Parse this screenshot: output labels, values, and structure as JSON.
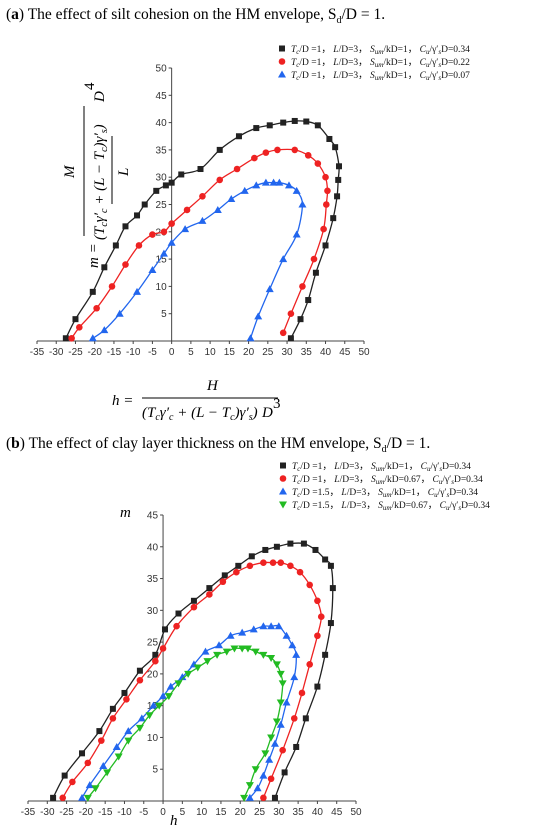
{
  "figure_a": {
    "caption_label": "a",
    "caption_text": " The effect of silt cohesion on the HM envelope, S",
    "caption_sub": "d",
    "caption_tail": "/D = 1.",
    "y_equation": {
      "lhs": "m =",
      "numerator": "M",
      "denominator_line1": "(T",
      "denominator_full": "(T_cγ'_c + (L − T_c)γ'_s) / L",
      "power": "4",
      "variable": "D"
    },
    "x_equation": {
      "lhs": "h =",
      "numerator": "H",
      "denominator_full": "(T_cγ'_c + (L − T_c)γ'_s) / L",
      "power": "3",
      "variable": "D"
    }
  },
  "figure_b": {
    "caption_label": "b",
    "caption_text": " The effect of clay layer thickness on the HM envelope, S",
    "caption_sub": "d",
    "caption_tail": "/D = 1.",
    "xlabel": "h",
    "ylabel": "m"
  },
  "chart_data": [
    {
      "type": "line",
      "id": "a",
      "xlim": [
        -35,
        50
      ],
      "ylim": [
        0,
        50
      ],
      "xticks": [
        -35,
        -30,
        -25,
        -20,
        -15,
        -10,
        -5,
        0,
        5,
        10,
        15,
        20,
        25,
        30,
        35,
        40,
        45,
        50
      ],
      "yticks": [
        5,
        10,
        15,
        20,
        25,
        30,
        35,
        40,
        45,
        50
      ],
      "legend_position": "top-right",
      "series": [
        {
          "name": "T_c/D = 1，L/D=3，S_um/kD=1，C_u/γ'_sD=0.34",
          "legend": [
            "T",
            "c",
            "/D =1， ",
            "L",
            "/D=3， ",
            "S",
            "um",
            "/kD=1， ",
            "C",
            "u",
            "/γ",
            "s",
            "D=0.34"
          ],
          "color": "#222222",
          "marker": "square",
          "x": [
            -27.5,
            -25,
            -20.5,
            -17.5,
            -14.5,
            -12,
            -9,
            -7,
            -4,
            -1.5,
            0,
            2.5,
            7.5,
            12.5,
            17.5,
            22,
            25.5,
            29,
            32,
            35,
            38,
            41,
            42.5,
            43.5,
            43.3,
            43,
            42,
            40,
            37.5,
            35.5,
            33.5,
            31
          ],
          "y": [
            0.5,
            4,
            9,
            13.5,
            17.5,
            21,
            23,
            25,
            27.5,
            28.5,
            29,
            30.5,
            31.5,
            35,
            37.5,
            39,
            39.5,
            40,
            40.3,
            40.2,
            39.5,
            37,
            35.5,
            32,
            29.5,
            26.5,
            22.5,
            17.5,
            12.5,
            7.5,
            4,
            0.5
          ]
        },
        {
          "name": "T_c/D = 1，L/D=3，S_um/kD=1，C_u/γ'_sD=0.22",
          "legend": [
            "T",
            "c",
            "/D =1， ",
            "L",
            "/D=3， ",
            "S",
            "um",
            "/kD=1， ",
            "C",
            "u",
            "/γ",
            "s",
            "D=0.22"
          ],
          "color": "#ee2222",
          "marker": "circle",
          "x": [
            -26,
            -24,
            -19.5,
            -15.5,
            -12,
            -8.5,
            -5,
            -2,
            0,
            4,
            8,
            12.5,
            17,
            21.5,
            24.5,
            27.5,
            32,
            35.5,
            38,
            40,
            40.5,
            40.2,
            39.5,
            37,
            34,
            31,
            29
          ],
          "y": [
            0.5,
            2.5,
            6,
            10,
            14,
            17.5,
            19.5,
            20,
            21.5,
            24,
            26.5,
            29.5,
            31.5,
            33.5,
            34.5,
            35,
            35,
            34,
            32.5,
            30,
            27.5,
            25,
            20.5,
            15,
            10,
            5,
            1.5
          ]
        },
        {
          "name": "T_c/D = 1，L/D=3，S_um/kD=1，C_u/γ'_sD=0.07",
          "legend": [
            "T",
            "c",
            "/D =1， ",
            "L",
            "/D=3， ",
            "S",
            "um",
            "/kD=1， ",
            "C",
            "u",
            "/γ",
            "s",
            "D=0.07"
          ],
          "color": "#2266ee",
          "marker": "triangle",
          "x": [
            -20.5,
            -17.5,
            -13.5,
            -9,
            -5,
            -2,
            0,
            3.5,
            8,
            12,
            15.5,
            19,
            22,
            24.5,
            26.5,
            28,
            30.5,
            32.5,
            34,
            32.5,
            29,
            25.5,
            22.5,
            20.5
          ],
          "y": [
            0.5,
            2,
            5,
            9,
            13,
            16,
            18,
            20.5,
            22,
            24,
            26,
            27.5,
            28.5,
            29,
            29,
            29,
            28.5,
            27.5,
            25,
            19.5,
            15,
            9.5,
            4.5,
            0.5
          ]
        }
      ]
    },
    {
      "type": "line",
      "id": "b",
      "xlabel": "h",
      "ylabel": "m",
      "xlim": [
        -35,
        50
      ],
      "ylim": [
        0,
        45
      ],
      "xticks": [
        -35,
        -30,
        -25,
        -20,
        -15,
        -10,
        -5,
        0,
        5,
        10,
        15,
        20,
        25,
        30,
        35,
        40,
        45,
        50
      ],
      "yticks": [
        5,
        10,
        15,
        20,
        25,
        30,
        35,
        40,
        45
      ],
      "legend_position": "top-right",
      "series": [
        {
          "name": "T_c/D = 1，L/D=3，S_um/kD=1，C_u/γ'_sD=0.34",
          "legend": [
            "T",
            "c",
            "/D =1， ",
            "L",
            "/D=3， ",
            "S",
            "um",
            "/kD=1， ",
            "C",
            "u",
            "/γ",
            "s",
            "D=0.34"
          ],
          "color": "#222222",
          "marker": "square",
          "x": [
            -28.5,
            -25.5,
            -21,
            -16.5,
            -13,
            -10,
            -6,
            -2,
            0.5,
            4,
            8,
            12,
            16,
            19.5,
            23,
            26.5,
            29.5,
            33,
            36.5,
            39.5,
            42,
            43.5,
            44,
            43.5,
            42,
            40,
            37,
            34.5,
            31.5,
            29
          ],
          "y": [
            0.5,
            4,
            7.5,
            11,
            14.5,
            17,
            20.5,
            23,
            27,
            29.5,
            31.5,
            33.5,
            35.5,
            37,
            38.5,
            39.5,
            40,
            40.5,
            40.5,
            39.5,
            38,
            37,
            33.5,
            28,
            23,
            18,
            13,
            8.5,
            4.5,
            0.5
          ]
        },
        {
          "name": "T_c/D = 1，L/D=3，S_um/kD=0.67，C_u/γ'_sD=0.34",
          "legend": [
            "T",
            "c",
            "/D =1， ",
            "L",
            "/D=3， ",
            "S",
            "um",
            "/kD=0.67， ",
            "C",
            "u",
            "/γ",
            "s",
            "D=0.34"
          ],
          "color": "#ee2222",
          "marker": "circle",
          "x": [
            -26,
            -23.5,
            -19.5,
            -16,
            -13,
            -9.5,
            -6,
            -2,
            0,
            3.5,
            8,
            12,
            15.5,
            19,
            22.5,
            26,
            28.5,
            30.5,
            33,
            35.5,
            38,
            40,
            41,
            40,
            38,
            36,
            34,
            31,
            28,
            26
          ],
          "y": [
            0.5,
            3,
            6,
            9.5,
            13,
            16,
            19,
            22,
            24,
            27.5,
            30.5,
            32.5,
            34.5,
            36,
            37,
            37.5,
            37.5,
            37.5,
            37,
            36,
            34,
            31.5,
            29,
            26,
            21.5,
            17,
            13,
            8,
            3.5,
            0.5
          ]
        },
        {
          "name": "T_c/D = 1.5，L/D=3，S_um/kD=1，C_u/γ'_sD=0.34",
          "legend": [
            "T",
            "c",
            "/D =1.5， ",
            "L",
            "/D=3， ",
            "S",
            "um",
            "/kD=1， ",
            "C",
            "u",
            "/γ",
            "s",
            "D=0.34"
          ],
          "color": "#2266ee",
          "marker": "triangle",
          "x": [
            -21,
            -19,
            -15.5,
            -12,
            -9,
            -5.5,
            -2.5,
            0,
            2,
            5,
            8,
            11,
            14.5,
            17.5,
            20.5,
            23.5,
            26,
            28,
            30,
            32,
            33.5,
            34.5,
            34,
            32,
            30.5,
            29,
            27.5,
            26,
            24.5,
            22.5
          ],
          "y": [
            0.5,
            2.5,
            5.5,
            8.5,
            11,
            13,
            15,
            16.5,
            18,
            19.5,
            21.5,
            23.5,
            24.5,
            26,
            26.5,
            27,
            27.5,
            27.5,
            27.5,
            26,
            24.5,
            23,
            19.5,
            15.5,
            12,
            9,
            6.5,
            4,
            2,
            0.5
          ]
        },
        {
          "name": "T_c/D = 1.5，L/D=3，S_um/kD=0.67，C_u/γ'_sD=0.34",
          "legend": [
            "T",
            "c",
            "/D =1.5， ",
            "L",
            "/D=3， ",
            "S",
            "um",
            "/kD=0.67， ",
            "C",
            "u",
            "/γ",
            "s",
            "D=0.34"
          ],
          "color": "#22bb22",
          "marker": "triangle-down",
          "x": [
            -19.5,
            -17.5,
            -14.5,
            -11.5,
            -9,
            -6,
            -3.5,
            -1,
            1.5,
            4,
            6.5,
            9,
            11.5,
            14,
            16.5,
            18.5,
            20.5,
            22,
            24,
            26,
            28,
            29.5,
            30.5,
            31,
            30.5,
            29.5,
            28,
            26.5,
            24,
            22.5,
            21
          ],
          "y": [
            0.5,
            2,
            4.5,
            7,
            9.5,
            11.5,
            13.5,
            15,
            16.5,
            18.5,
            20,
            21,
            22,
            23,
            23.5,
            24,
            24,
            24,
            23.5,
            23,
            22.5,
            21.5,
            20,
            18.5,
            15.5,
            12.5,
            10,
            7.5,
            5,
            2.5,
            0.5
          ]
        }
      ]
    }
  ]
}
